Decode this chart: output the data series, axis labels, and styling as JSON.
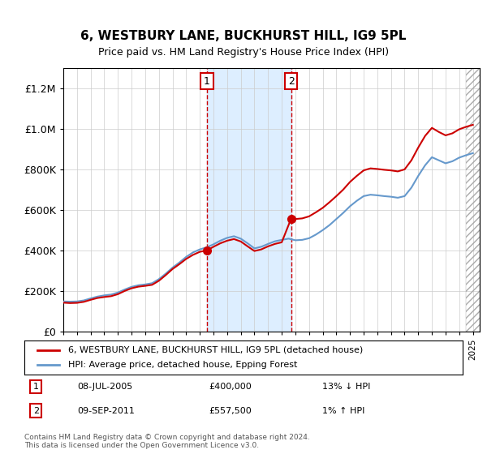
{
  "title": "6, WESTBURY LANE, BUCKHURST HILL, IG9 5PL",
  "subtitle": "Price paid vs. HM Land Registry's House Price Index (HPI)",
  "legend_line1": "6, WESTBURY LANE, BUCKHURST HILL, IG9 5PL (detached house)",
  "legend_line2": "HPI: Average price, detached house, Epping Forest",
  "annotation1_label": "1",
  "annotation1_date": "08-JUL-2005",
  "annotation1_price": "£400,000",
  "annotation1_hpi": "13% ↓ HPI",
  "annotation2_label": "2",
  "annotation2_date": "09-SEP-2011",
  "annotation2_price": "£557,500",
  "annotation2_hpi": "1% ↑ HPI",
  "footer": "Contains HM Land Registry data © Crown copyright and database right 2024.\nThis data is licensed under the Open Government Licence v3.0.",
  "hpi_color": "#6699cc",
  "price_color": "#cc0000",
  "sale1_x": 2005.52,
  "sale1_y": 400000,
  "sale2_x": 2011.69,
  "sale2_y": 557500,
  "ylim": [
    0,
    1300000
  ],
  "xlim_min": 1995,
  "xlim_max": 2025.5,
  "background_color": "#ffffff",
  "plot_bg_color": "#ffffff",
  "shaded_region_color": "#ddeeff",
  "grid_color": "#cccccc"
}
